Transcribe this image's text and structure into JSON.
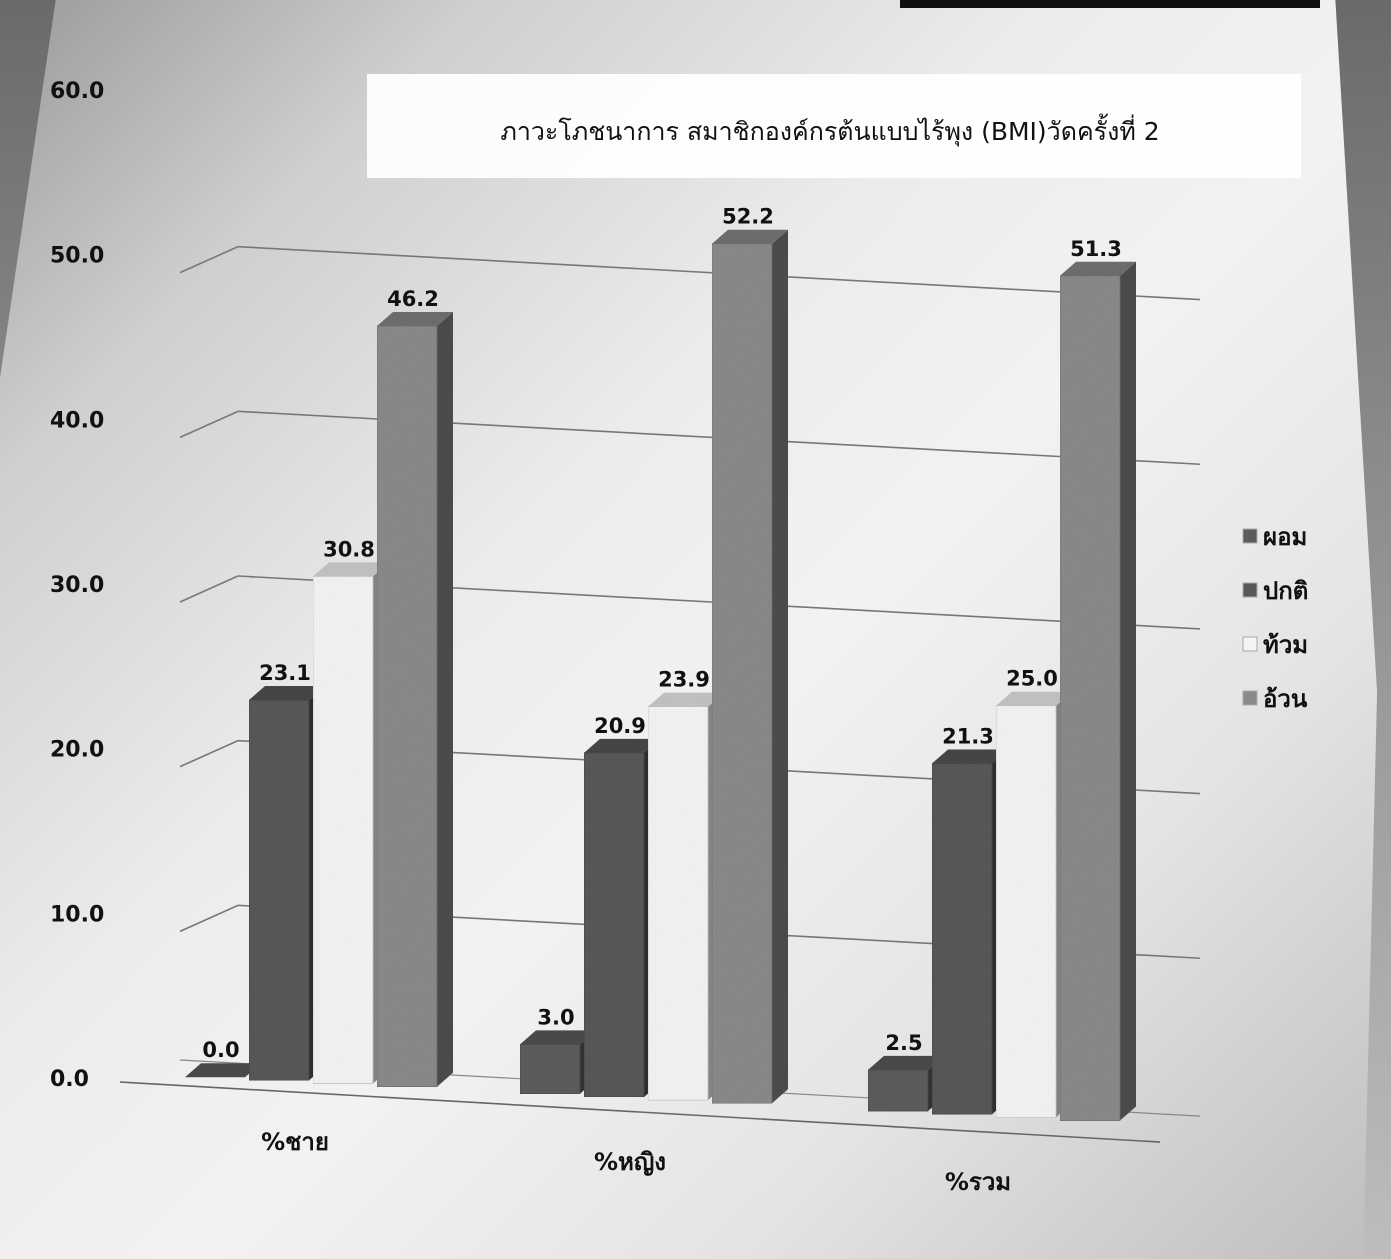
{
  "chart_data": {
    "type": "bar",
    "title": "ภาวะโภชนาการ สมาชิกองค์กรต้นแบบไร้พุง (BMI)วัดครั้งที่ 2",
    "categories": [
      "%ชาย",
      "%หญิง",
      "%รวม"
    ],
    "series": [
      {
        "name": "ผอม",
        "values": [
          0.0,
          3.0,
          2.5
        ],
        "labels": [
          "0.0",
          "3.0",
          "2.5"
        ]
      },
      {
        "name": "ปกติ",
        "values": [
          23.1,
          20.9,
          21.3
        ],
        "labels": [
          "23.1",
          "20.9",
          "21.3"
        ]
      },
      {
        "name": "ท้วม",
        "values": [
          30.8,
          23.9,
          25.0
        ],
        "labels": [
          "30.8",
          "23.9",
          "25.0"
        ]
      },
      {
        "name": "อ้วน",
        "values": [
          46.2,
          52.2,
          51.3
        ],
        "labels": [
          "46.2",
          "52.2",
          "51.3"
        ]
      }
    ],
    "ylim": [
      0,
      60
    ],
    "yticks": [
      "0.0",
      "10.0",
      "20.0",
      "30.0",
      "40.0",
      "50.0",
      "60.0"
    ],
    "grid": true,
    "legend_position": "right",
    "three_d": true,
    "colors": {
      "ผอม": "#5c5c5c",
      "ปกติ": "#585858",
      "ท้วม": "#f4f4f4",
      "อ้วน": "#8a8a8a"
    }
  }
}
